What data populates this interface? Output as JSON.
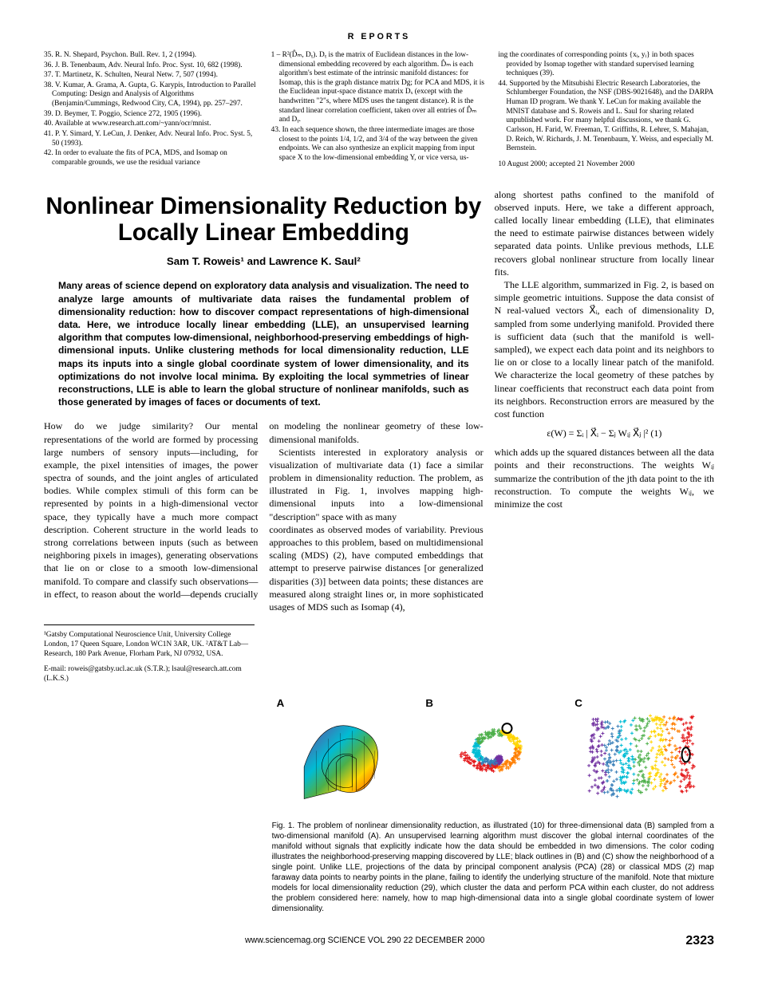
{
  "section_header": "R EPORTS",
  "refs_col1": [
    "35. R. N. Shepard, Psychon. Bull. Rev. 1, 2 (1994).",
    "36. J. B. Tenenbaum, Adv. Neural Info. Proc. Syst. 10, 682 (1998).",
    "37. T. Martinetz, K. Schulten, Neural Netw. 7, 507 (1994).",
    "38. V. Kumar, A. Grama, A. Gupta, G. Karypis, Introduction to Parallel Computing: Design and Analysis of Algorithms (Benjamin/Cummings, Redwood City, CA, 1994), pp. 257–297.",
    "39. D. Beymer, T. Poggio, Science 272, 1905 (1996).",
    "40. Available at www.research.att.com/~yann/ocr/mnist.",
    "41. P. Y. Simard, Y. LeCun, J. Denker, Adv. Neural Info. Proc. Syst. 5, 50 (1993).",
    "42. In order to evaluate the fits of PCA, MDS, and Isomap on comparable grounds, we use the residual variance"
  ],
  "refs_col2": [
    "1 – R²(D̂ₘ, Dᵧ). Dᵧ is the matrix of Euclidean distances in the low-dimensional embedding recovered by each algorithm. D̂ₘ is each algorithm's best estimate of the intrinsic manifold distances: for Isomap, this is the graph distance matrix Dg; for PCA and MDS, it is the Euclidean input-space distance matrix Dₓ (except with the handwritten \"2\"s, where MDS uses the tangent distance). R is the standard linear correlation coefficient, taken over all entries of D̂ₘ and Dᵧ.",
    "43. In each sequence shown, the three intermediate images are those closest to the points 1/4, 1/2, and 3/4 of the way between the given endpoints. We can also synthesize an explicit mapping from input space X to the low-dimensional embedding Y, or vice versa, us-"
  ],
  "refs_col3": [
    "ing the coordinates of corresponding points {xᵢ, yᵢ} in both spaces provided by Isomap together with standard supervised learning techniques (39).",
    "44. Supported by the Mitsubishi Electric Research Laboratories, the Schlumberger Foundation, the NSF (DBS-9021648), and the DARPA Human ID program. We thank Y. LeCun for making available the MNIST database and S. Roweis and L. Saul for sharing related unpublished work. For many helpful discussions, we thank G. Carlsson, H. Farid, W. Freeman, T. Griffiths, R. Lehrer, S. Mahajan, D. Reich, W. Richards, J. M. Tenenbaum, Y. Weiss, and especially M. Bernstein."
  ],
  "refs_date": "10 August 2000; accepted 21 November 2000",
  "title": "Nonlinear Dimensionality Reduction by Locally Linear Embedding",
  "authors": "Sam T. Roweis¹ and Lawrence K. Saul²",
  "abstract": "Many areas of science depend on exploratory data analysis and visualization. The need to analyze large amounts of multivariate data raises the fundamental problem of dimensionality reduction: how to discover compact representations of high-dimensional data. Here, we introduce locally linear embedding (LLE), an unsupervised learning algorithm that computes low-dimensional, neighborhood-preserving embeddings of high-dimensional inputs. Unlike clustering methods for local dimensionality reduction, LLE maps its inputs into a single global coordinate system of lower dimensionality, and its optimizations do not involve local minima. By exploiting the local symmetries of linear reconstructions, LLE is able to learn the global structure of nonlinear manifolds, such as those generated by images of faces or documents of text.",
  "body_p1": "How do we judge similarity? Our mental representations of the world are formed by processing large numbers of sensory inputs—including, for example, the pixel intensities of images, the power spectra of sounds, and the joint angles of articulated bodies. While complex stimuli of this form can be represented by points in a high-dimensional vector space, they typically have a much more compact description. Coherent structure in the world leads to strong correlations between inputs (such as between neighboring pixels in images), generating observations that lie on or close to a smooth low-dimensional manifold. To compare and classify such observations—in effect, to reason about the world—depends crucially on modeling the nonlinear geometry of these low-dimensional manifolds.",
  "body_p2": "Scientists interested in exploratory analysis or visualization of multivariate data (1) face a similar problem in dimensionality reduction. The problem, as illustrated in Fig. 1, involves mapping high-dimensional inputs into a low-dimensional \"description\" space with as many",
  "body_p3": "coordinates as observed modes of variability. Previous approaches to this problem, based on multidimensional scaling (MDS) (2), have computed embeddings that attempt to preserve pairwise distances [or generalized disparities (3)] between data points; these distances are measured along straight lines or, in more sophisticated usages of MDS such as Isomap (4),",
  "right_p1": "along shortest paths confined to the manifold of observed inputs. Here, we take a different approach, called locally linear embedding (LLE), that eliminates the need to estimate pairwise distances between widely separated data points. Unlike previous methods, LLE recovers global nonlinear structure from locally linear fits.",
  "right_p2": "The LLE algorithm, summarized in Fig. 2, is based on simple geometric intuitions. Suppose the data consist of N real-valued vectors X⃗ᵢ, each of dimensionality D, sampled from some underlying manifold. Provided there is sufficient data (such that the manifold is well-sampled), we expect each data point and its neighbors to lie on or close to a locally linear patch of the manifold. We characterize the local geometry of these patches by linear coefficients that reconstruct each data point from its neighbors. Reconstruction errors are measured by the cost function",
  "equation": "ε(W) = Σᵢ | X⃗ᵢ − Σⱼ Wᵢⱼ X⃗ⱼ |²        (1)",
  "right_p3": "which adds up the squared distances between all the data points and their reconstructions. The weights Wᵢⱼ summarize the contribution of the jth data point to the ith reconstruction. To compute the weights Wᵢⱼ, we minimize the cost",
  "affil1": "¹Gatsby Computational Neuroscience Unit, University College London, 17 Queen Square, London WC1N 3AR, UK. ²AT&T Lab—Research, 180 Park Avenue, Florham Park, NJ 07932, USA.",
  "affil2": "E-mail: roweis@gatsby.ucl.ac.uk (S.T.R.); lsaul@research.att.com (L.K.S.)",
  "panel_labels": {
    "a": "A",
    "b": "B",
    "c": "C"
  },
  "fig_caption": "Fig. 1. The problem of nonlinear dimensionality reduction, as illustrated (10) for three-dimensional data (B) sampled from a two-dimensional manifold (A). An unsupervised learning algorithm must discover the global internal coordinates of the manifold without signals that explicitly indicate how the data should be embedded in two dimensions. The color coding illustrates the neighborhood-preserving mapping discovered by LLE; black outlines in (B) and (C) show the neighborhood of a single point. Unlike LLE, projections of the data by principal component analysis (PCA) (28) or classical MDS (2) map faraway data points to nearby points in the plane, failing to identify the underlying structure of the manifold. Note that mixture models for local dimensionality reduction (29), which cluster the data and perform PCA within each cluster, do not address the problem considered here: namely, how to map high-dimensional data into a single global coordinate system of lower dimensionality.",
  "footer_center": "www.sciencemag.org   SCIENCE   VOL 290   22 DECEMBER 2000",
  "footer_page": "2323",
  "figure": {
    "type": "schematic",
    "colors": {
      "red": "#e41a1c",
      "orange": "#ff7f00",
      "yellow": "#ffd400",
      "green": "#4daf4a",
      "cyan": "#00bcd4",
      "blue": "#377eb8",
      "purple": "#7030a0",
      "outline": "#000000",
      "bg": "#ffffff"
    }
  }
}
